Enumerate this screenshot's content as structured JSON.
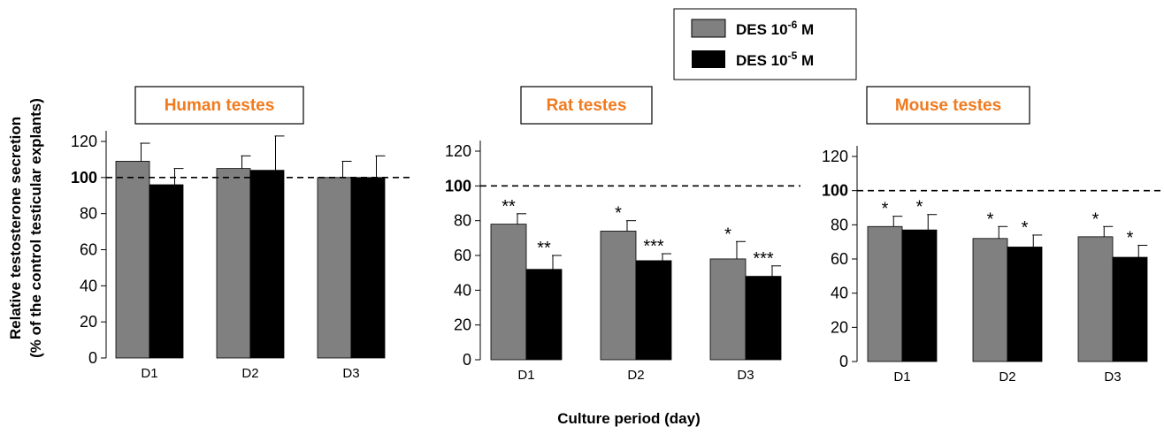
{
  "legend": {
    "items": [
      {
        "prefix": "DES 10",
        "exp": "-6",
        "suffix": " M",
        "color": "#808080"
      },
      {
        "prefix": "DES 10",
        "exp": "-5",
        "suffix": " M",
        "color": "#000000"
      }
    ]
  },
  "xlabel": "Culture period (day)",
  "ylabel": [
    "Relative testosterone secretion",
    "(% of the control testicular explants)"
  ],
  "chart_data": [
    {
      "type": "bar",
      "title": "Human testes",
      "categories": [
        "D1",
        "D2",
        "D3"
      ],
      "ylim": [
        0,
        120
      ],
      "yticks": [
        0,
        20,
        40,
        60,
        80,
        100,
        120
      ],
      "reference_line": 100,
      "series": [
        {
          "color": "#808080",
          "values": [
            109,
            105,
            100
          ],
          "errors": [
            10,
            7,
            9
          ],
          "stars": [
            "",
            "",
            ""
          ]
        },
        {
          "color": "#000000",
          "values": [
            96,
            104,
            100
          ],
          "errors": [
            9,
            19,
            12
          ],
          "stars": [
            "",
            "",
            ""
          ]
        }
      ]
    },
    {
      "type": "bar",
      "title": "Rat testes",
      "categories": [
        "D1",
        "D2",
        "D3"
      ],
      "ylim": [
        0,
        120
      ],
      "yticks": [
        0,
        20,
        40,
        60,
        80,
        100,
        120
      ],
      "reference_line": 100,
      "series": [
        {
          "color": "#808080",
          "values": [
            78,
            74,
            58
          ],
          "errors": [
            6,
            6,
            10
          ],
          "stars": [
            "**",
            "*",
            "*"
          ]
        },
        {
          "color": "#000000",
          "values": [
            52,
            57,
            48
          ],
          "errors": [
            8,
            4,
            6
          ],
          "stars": [
            "**",
            "***",
            "***"
          ]
        }
      ]
    },
    {
      "type": "bar",
      "title": "Mouse testes",
      "categories": [
        "D1",
        "D2",
        "D3"
      ],
      "ylim": [
        0,
        120
      ],
      "yticks": [
        0,
        20,
        40,
        60,
        80,
        100,
        120
      ],
      "reference_line": 100,
      "series": [
        {
          "color": "#808080",
          "values": [
            79,
            72,
            73
          ],
          "errors": [
            6,
            7,
            6
          ],
          "stars": [
            "*",
            "*",
            "*"
          ]
        },
        {
          "color": "#000000",
          "values": [
            77,
            67,
            61
          ],
          "errors": [
            9,
            7,
            7
          ],
          "stars": [
            "*",
            "*",
            "*"
          ]
        }
      ]
    }
  ]
}
